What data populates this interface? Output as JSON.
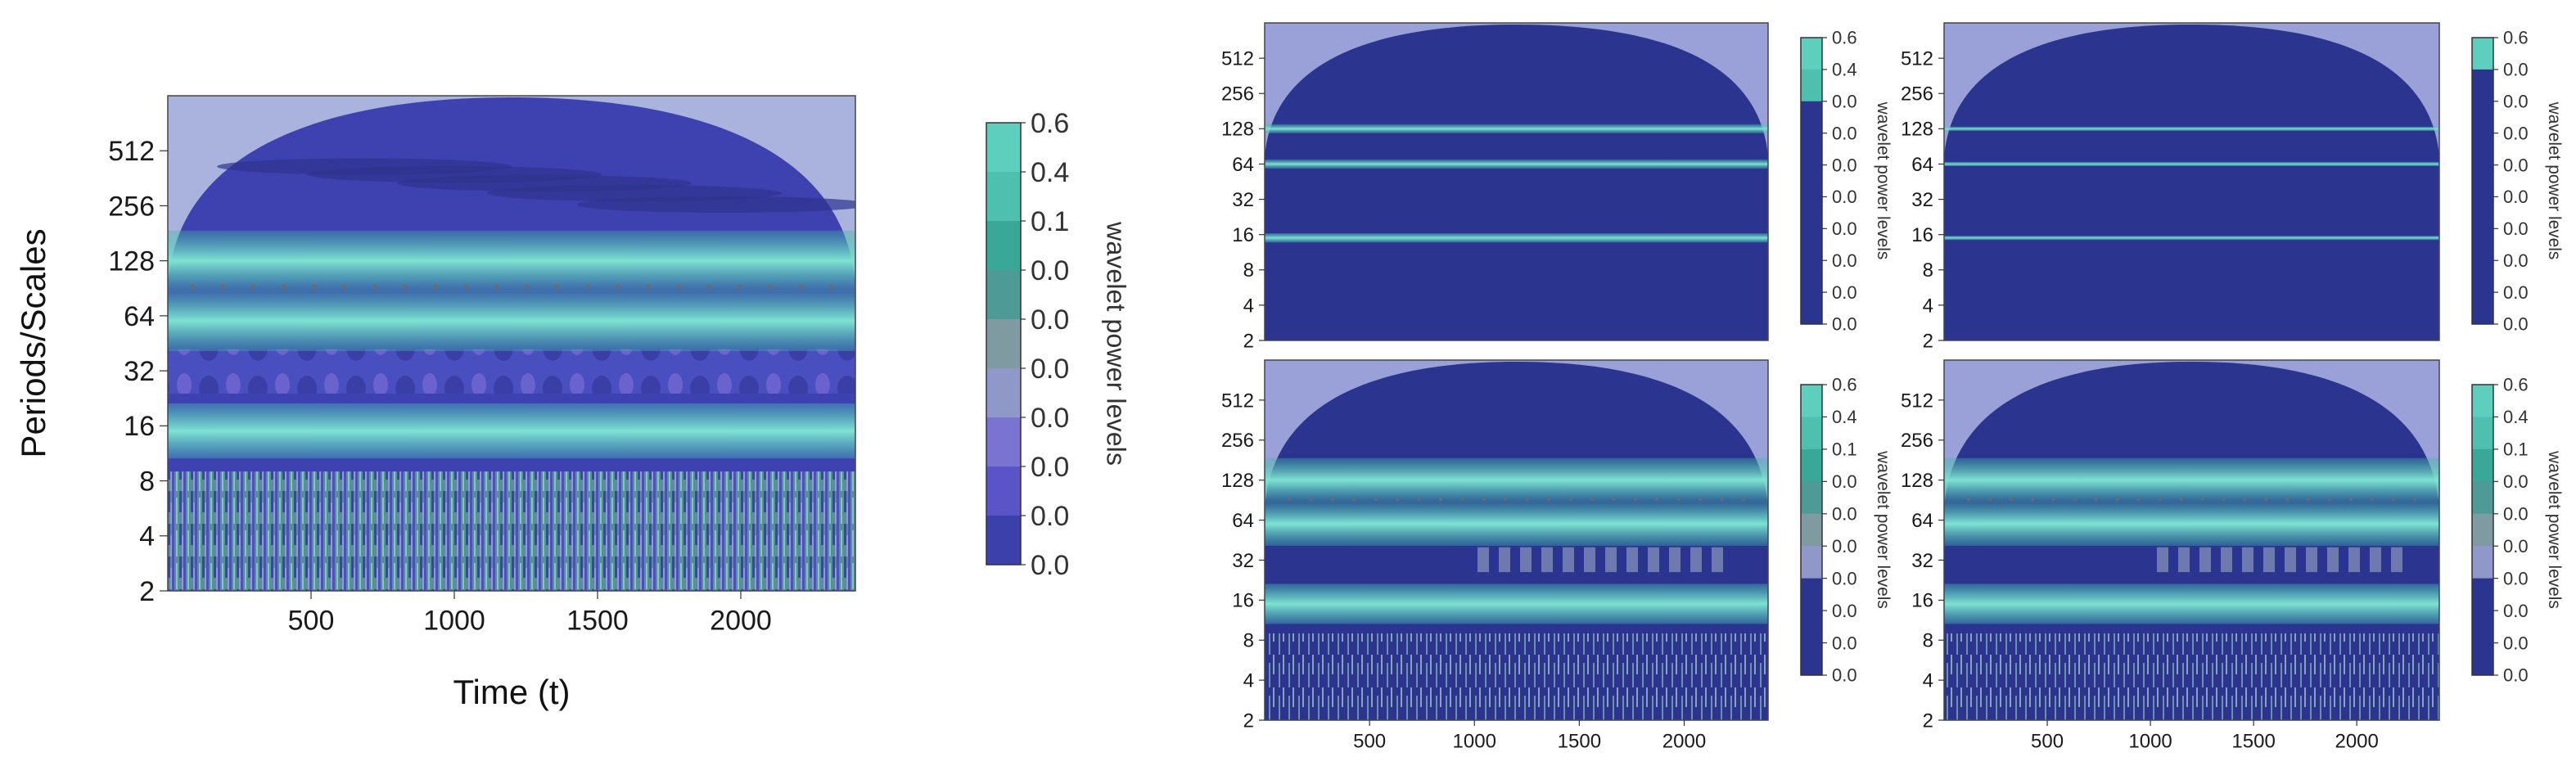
{
  "chart_data": [
    {
      "type": "heatmap",
      "panel": "main",
      "title": "",
      "xlabel": "Time (t)",
      "ylabel": "Periods/Scales",
      "xlim": [
        0,
        2400
      ],
      "ylim_log2": [
        1,
        10
      ],
      "x_ticks": [
        "500",
        "1000",
        "1500",
        "2000"
      ],
      "y_ticks": [
        "2",
        "4",
        "8",
        "16",
        "32",
        "64",
        "128",
        "256",
        "512"
      ],
      "colorbar_label": "wavelet power levels",
      "colorbar_ticks": [
        "0.6",
        "0.4",
        "0.1",
        "0.0",
        "0.0",
        "0.0",
        "0.0",
        "0.0",
        "0.0",
        "0.0"
      ],
      "bands": [
        {
          "period": 15,
          "power": 0.6
        },
        {
          "period": 60,
          "power": 0.45
        },
        {
          "period": 128,
          "power": 0.4
        }
      ]
    },
    {
      "type": "heatmap",
      "panel": "top-middle",
      "xlim": [
        0,
        2400
      ],
      "x_ticks": [],
      "y_ticks": [
        "2",
        "4",
        "8",
        "16",
        "32",
        "64",
        "128",
        "256",
        "512"
      ],
      "colorbar_label": "wavelet power levels",
      "colorbar_ticks": [
        "0.6",
        "0.4",
        "0.0",
        "0.0",
        "0.0",
        "0.0",
        "0.0",
        "0.0",
        "0.0",
        "0.0"
      ],
      "bands": [
        {
          "period": 15,
          "power": 0.6
        },
        {
          "period": 64,
          "power": 0.5
        },
        {
          "period": 128,
          "power": 0.5
        }
      ]
    },
    {
      "type": "heatmap",
      "panel": "top-right",
      "xlim": [
        0,
        2400
      ],
      "x_ticks": [],
      "y_ticks": [
        "2",
        "4",
        "8",
        "16",
        "32",
        "64",
        "128",
        "256",
        "512"
      ],
      "colorbar_label": "wavelet power levels",
      "colorbar_ticks": [
        "0.6",
        "0.0",
        "0.0",
        "0.0",
        "0.0",
        "0.0",
        "0.0",
        "0.0",
        "0.0",
        "0.0"
      ],
      "bands": [
        {
          "period": 15,
          "power": 0.6
        },
        {
          "period": 64,
          "power": 0.6
        },
        {
          "period": 128,
          "power": 0.6
        }
      ]
    },
    {
      "type": "heatmap",
      "panel": "bottom-middle",
      "xlim": [
        0,
        2400
      ],
      "x_ticks": [
        "500",
        "1000",
        "1500",
        "2000"
      ],
      "y_ticks": [
        "2",
        "4",
        "8",
        "16",
        "32",
        "64",
        "128",
        "256",
        "512"
      ],
      "colorbar_label": "wavelet power levels",
      "colorbar_ticks": [
        "0.6",
        "0.4",
        "0.1",
        "0.0",
        "0.0",
        "0.0",
        "0.0",
        "0.0",
        "0.0",
        "0.0"
      ],
      "bands": [
        {
          "period": 15,
          "power": 0.6
        },
        {
          "period": 60,
          "power": 0.45
        },
        {
          "period": 128,
          "power": 0.4
        }
      ]
    },
    {
      "type": "heatmap",
      "panel": "bottom-right",
      "xlim": [
        0,
        2400
      ],
      "x_ticks": [
        "500",
        "1000",
        "1500",
        "2000"
      ],
      "y_ticks": [
        "2",
        "4",
        "8",
        "16",
        "32",
        "64",
        "128",
        "256",
        "512"
      ],
      "colorbar_label": "wavelet power levels",
      "colorbar_ticks": [
        "0.6",
        "0.4",
        "0.1",
        "0.0",
        "0.0",
        "0.0",
        "0.0",
        "0.0",
        "0.0",
        "0.0"
      ],
      "bands": [
        {
          "period": 15,
          "power": 0.6
        },
        {
          "period": 60,
          "power": 0.45
        },
        {
          "period": 128,
          "power": 0.4
        }
      ]
    }
  ],
  "colors": {
    "deep": "#2b3590",
    "violet": "#4f4fc6",
    "lavender": "#9aa0d8",
    "teal": "#49c6b6",
    "teal_dark": "#2f9e90",
    "grey": "#8fa8a8"
  }
}
